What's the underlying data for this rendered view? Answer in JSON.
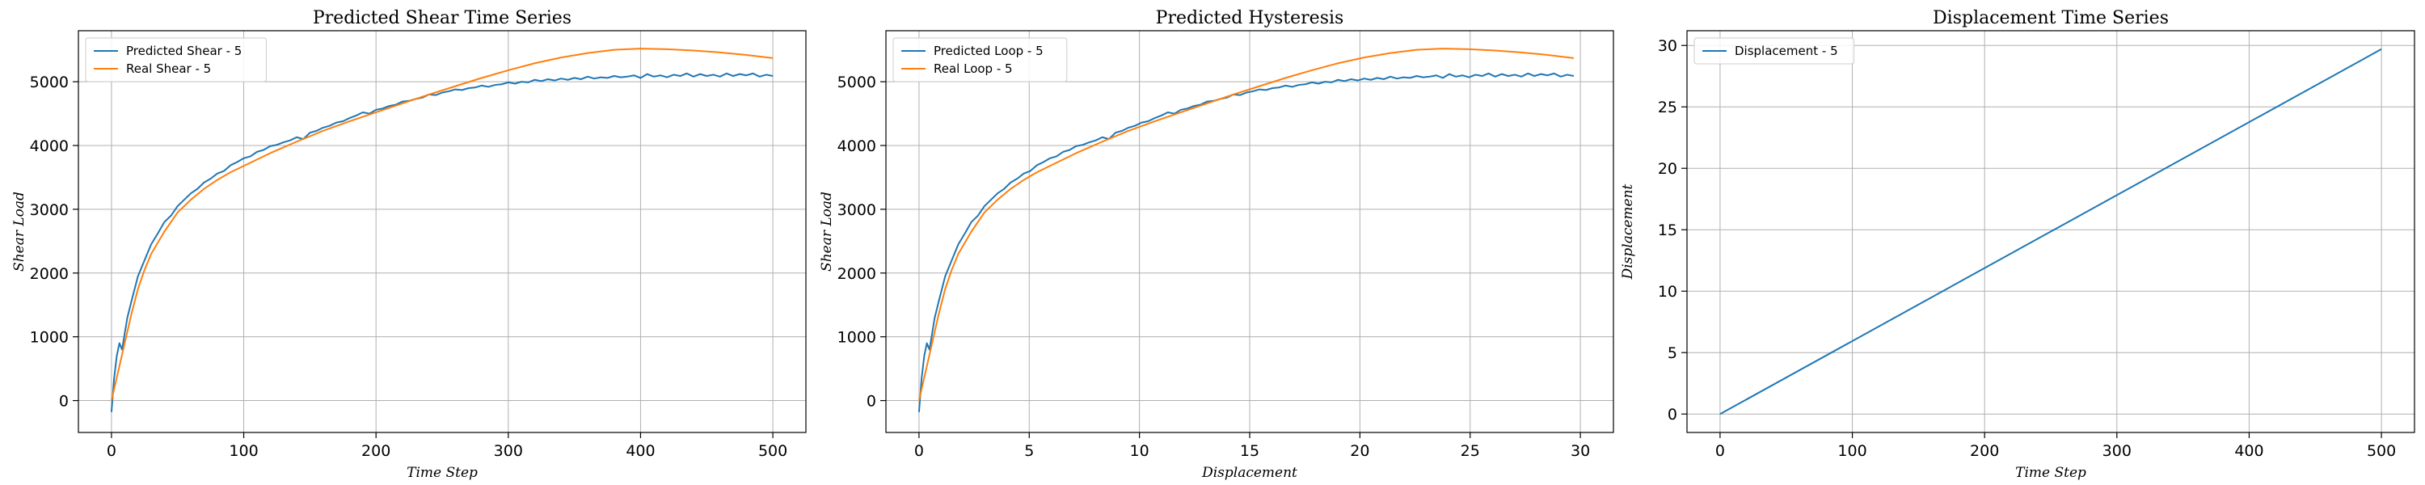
{
  "colors": {
    "series_blue": "#1f77b4",
    "series_orange": "#ff7f0e"
  },
  "chart_data": [
    {
      "type": "line",
      "title": "Predicted Shear Time Series",
      "xlabel": "Time Step",
      "ylabel": "Shear Load",
      "xlim": [
        -25,
        525
      ],
      "ylim": [
        -500,
        5800
      ],
      "xticks": [
        0,
        100,
        200,
        300,
        400,
        500
      ],
      "yticks": [
        0,
        1000,
        2000,
        3000,
        4000,
        5000
      ],
      "grid": true,
      "legend": "top-left",
      "series": [
        {
          "name": "Predicted Shear - 5",
          "color": "#1f77b4",
          "x": [
            0,
            2,
            4,
            6,
            8,
            10,
            12,
            15,
            20,
            25,
            30,
            35,
            40,
            45,
            50,
            55,
            60,
            65,
            70,
            75,
            80,
            85,
            90,
            95,
            100,
            105,
            110,
            115,
            120,
            125,
            130,
            135,
            140,
            145,
            150,
            155,
            160,
            165,
            170,
            175,
            180,
            185,
            190,
            195,
            200,
            205,
            210,
            215,
            220,
            225,
            230,
            235,
            240,
            245,
            250,
            255,
            260,
            265,
            270,
            275,
            280,
            285,
            290,
            295,
            300,
            305,
            310,
            315,
            320,
            325,
            330,
            335,
            340,
            345,
            350,
            355,
            360,
            365,
            370,
            375,
            380,
            385,
            390,
            395,
            400,
            405,
            410,
            415,
            420,
            425,
            430,
            435,
            440,
            445,
            450,
            455,
            460,
            465,
            470,
            475,
            480,
            485,
            490,
            495,
            500
          ],
          "y": [
            -180,
            350,
            700,
            900,
            800,
            1050,
            1300,
            1550,
            1950,
            2200,
            2450,
            2620,
            2800,
            2900,
            3050,
            3150,
            3250,
            3320,
            3420,
            3480,
            3560,
            3600,
            3690,
            3740,
            3800,
            3830,
            3900,
            3930,
            3990,
            4010,
            4050,
            4080,
            4130,
            4100,
            4200,
            4230,
            4280,
            4310,
            4360,
            4380,
            4430,
            4470,
            4520,
            4500,
            4560,
            4580,
            4620,
            4640,
            4690,
            4700,
            4730,
            4750,
            4800,
            4790,
            4830,
            4850,
            4880,
            4870,
            4900,
            4910,
            4940,
            4920,
            4950,
            4960,
            4990,
            4970,
            5000,
            4990,
            5030,
            5010,
            5040,
            5020,
            5050,
            5030,
            5060,
            5040,
            5080,
            5050,
            5070,
            5060,
            5090,
            5070,
            5080,
            5100,
            5060,
            5120,
            5080,
            5100,
            5070,
            5110,
            5090,
            5130,
            5080,
            5120,
            5090,
            5110,
            5080,
            5130,
            5090,
            5120,
            5100,
            5130,
            5080,
            5110,
            5090
          ]
        },
        {
          "name": "Real Shear - 5",
          "color": "#ff7f0e",
          "x": [
            0,
            5,
            10,
            15,
            20,
            25,
            30,
            40,
            50,
            60,
            70,
            80,
            90,
            100,
            120,
            140,
            160,
            180,
            200,
            220,
            240,
            260,
            280,
            300,
            320,
            340,
            360,
            380,
            400,
            420,
            440,
            460,
            480,
            500
          ],
          "y": [
            0,
            450,
            900,
            1350,
            1750,
            2050,
            2300,
            2650,
            2950,
            3150,
            3320,
            3460,
            3580,
            3680,
            3880,
            4060,
            4230,
            4380,
            4520,
            4660,
            4800,
            4930,
            5060,
            5180,
            5290,
            5380,
            5450,
            5500,
            5520,
            5510,
            5490,
            5460,
            5420,
            5370
          ]
        }
      ]
    },
    {
      "type": "line",
      "title": "Predicted Hysteresis",
      "xlabel": "Displacement",
      "ylabel": "Shear Load",
      "xlim": [
        -1.5,
        31.5
      ],
      "ylim": [
        -500,
        5800
      ],
      "xticks": [
        0,
        5,
        10,
        15,
        20,
        25,
        30
      ],
      "yticks": [
        0,
        1000,
        2000,
        3000,
        4000,
        5000
      ],
      "grid": true,
      "legend": "top-left",
      "series": [
        {
          "name": "Predicted Loop - 5",
          "color": "#1f77b4",
          "x_from_series_of_chart": 0,
          "x_scale": 0.0594,
          "y_from_series_of_chart": 0
        },
        {
          "name": "Real Loop - 5",
          "color": "#ff7f0e",
          "x_from_series_of_chart": 1,
          "x_scale": 0.0594,
          "y_from_series_of_chart": 1
        }
      ]
    },
    {
      "type": "line",
      "title": "Displacement Time Series",
      "xlabel": "Time Step",
      "ylabel": "Displacement",
      "xlim": [
        -25,
        525
      ],
      "ylim": [
        -1.5,
        31.2
      ],
      "xticks": [
        0,
        100,
        200,
        300,
        400,
        500
      ],
      "yticks": [
        0,
        5,
        10,
        15,
        20,
        25,
        30
      ],
      "grid": true,
      "legend": "top-left",
      "series": [
        {
          "name": "Displacement - 5",
          "color": "#1f77b4",
          "x": [
            0,
            500
          ],
          "y": [
            0,
            29.7
          ]
        }
      ]
    }
  ]
}
